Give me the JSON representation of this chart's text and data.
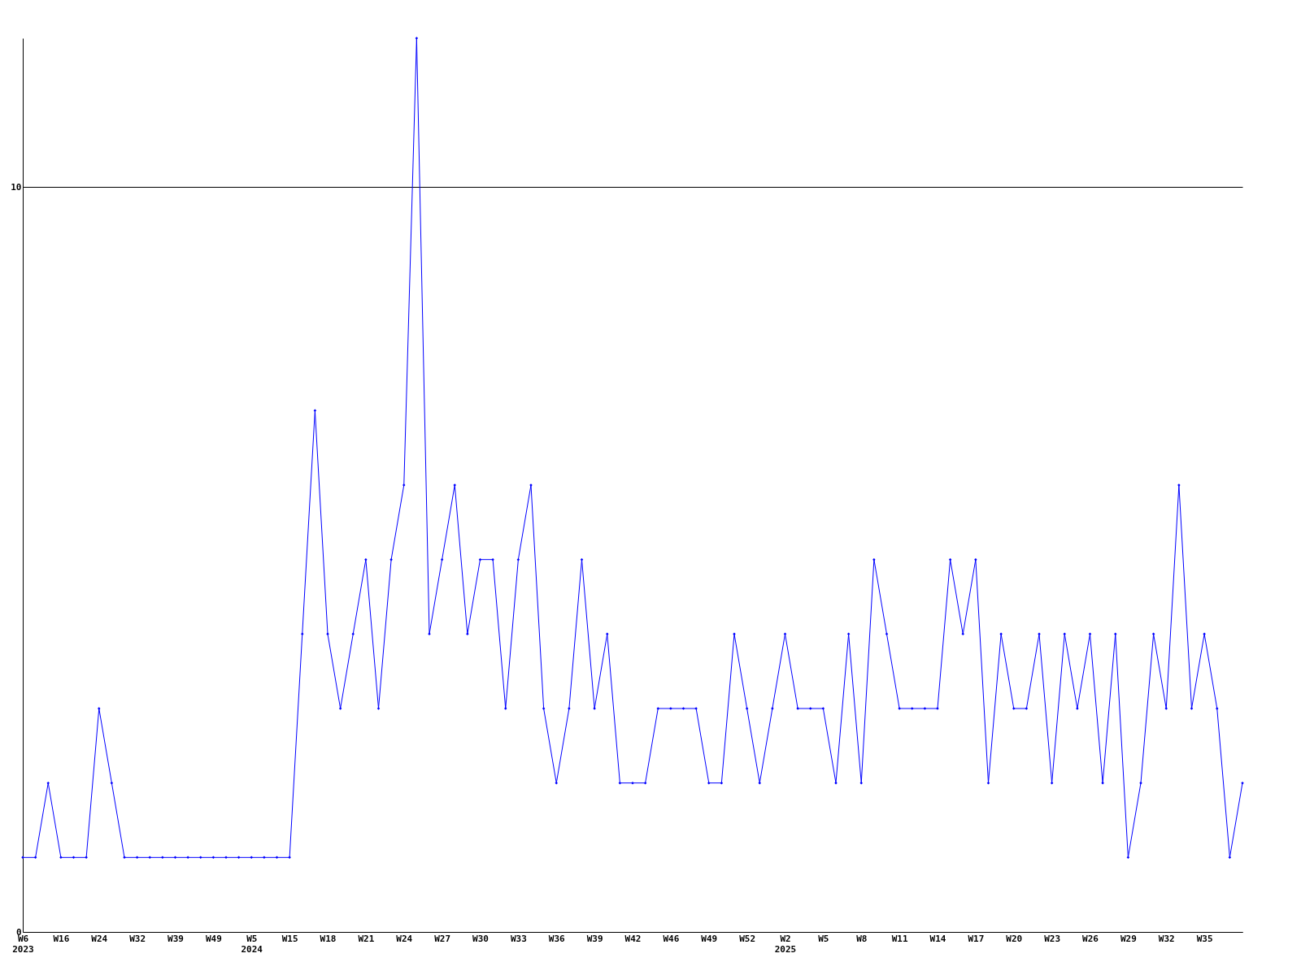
{
  "chart_data": {
    "type": "line",
    "categories": [
      "W6\n2023",
      null,
      null,
      "W16",
      null,
      null,
      "W24",
      null,
      null,
      "W32",
      null,
      null,
      "W39",
      null,
      null,
      "W49",
      null,
      null,
      "W5\n2024",
      null,
      null,
      "W15",
      null,
      null,
      "W18",
      null,
      null,
      "W21",
      null,
      null,
      "W24",
      null,
      null,
      "W27",
      null,
      null,
      "W30",
      null,
      null,
      "W33",
      null,
      null,
      "W36",
      null,
      null,
      "W39",
      null,
      null,
      "W42",
      null,
      null,
      "W46",
      null,
      null,
      "W49",
      null,
      null,
      "W52",
      null,
      null,
      "W2\n2025",
      null,
      null,
      "W5",
      null,
      null,
      "W8",
      null,
      null,
      "W11",
      null,
      null,
      "W14",
      null,
      null,
      "W17",
      null,
      null,
      "W20",
      null,
      null,
      "W23",
      null,
      null,
      "W26",
      null,
      null,
      "W29",
      null,
      null,
      "W32",
      null,
      null,
      "W35",
      null,
      null,
      null
    ],
    "series": [
      {
        "color": "#0000ff",
        "values": [
          1,
          1,
          2,
          1,
          1,
          1,
          3,
          2,
          1,
          1,
          1,
          1,
          1,
          1,
          1,
          1,
          1,
          1,
          1,
          1,
          1,
          1,
          4,
          7,
          4,
          3,
          4,
          5,
          3,
          5,
          6,
          12,
          4,
          5,
          6,
          4,
          5,
          5,
          3,
          5,
          6,
          3,
          2,
          3,
          5,
          3,
          4,
          2,
          2,
          2,
          3,
          3,
          3,
          3,
          2,
          2,
          4,
          3,
          2,
          3,
          4,
          3,
          3,
          3,
          2,
          4,
          2,
          5,
          4,
          3,
          3,
          3,
          3,
          5,
          4,
          5,
          2,
          4,
          3,
          3,
          4,
          2,
          4,
          3,
          4,
          2,
          4,
          1,
          2,
          4,
          3,
          6,
          3,
          4,
          3,
          1,
          2
        ]
      }
    ],
    "ylim": [
      0,
      12
    ],
    "yticks": [
      0,
      10
    ],
    "grid": "y",
    "marker": "diamond",
    "line_style": "solid"
  }
}
